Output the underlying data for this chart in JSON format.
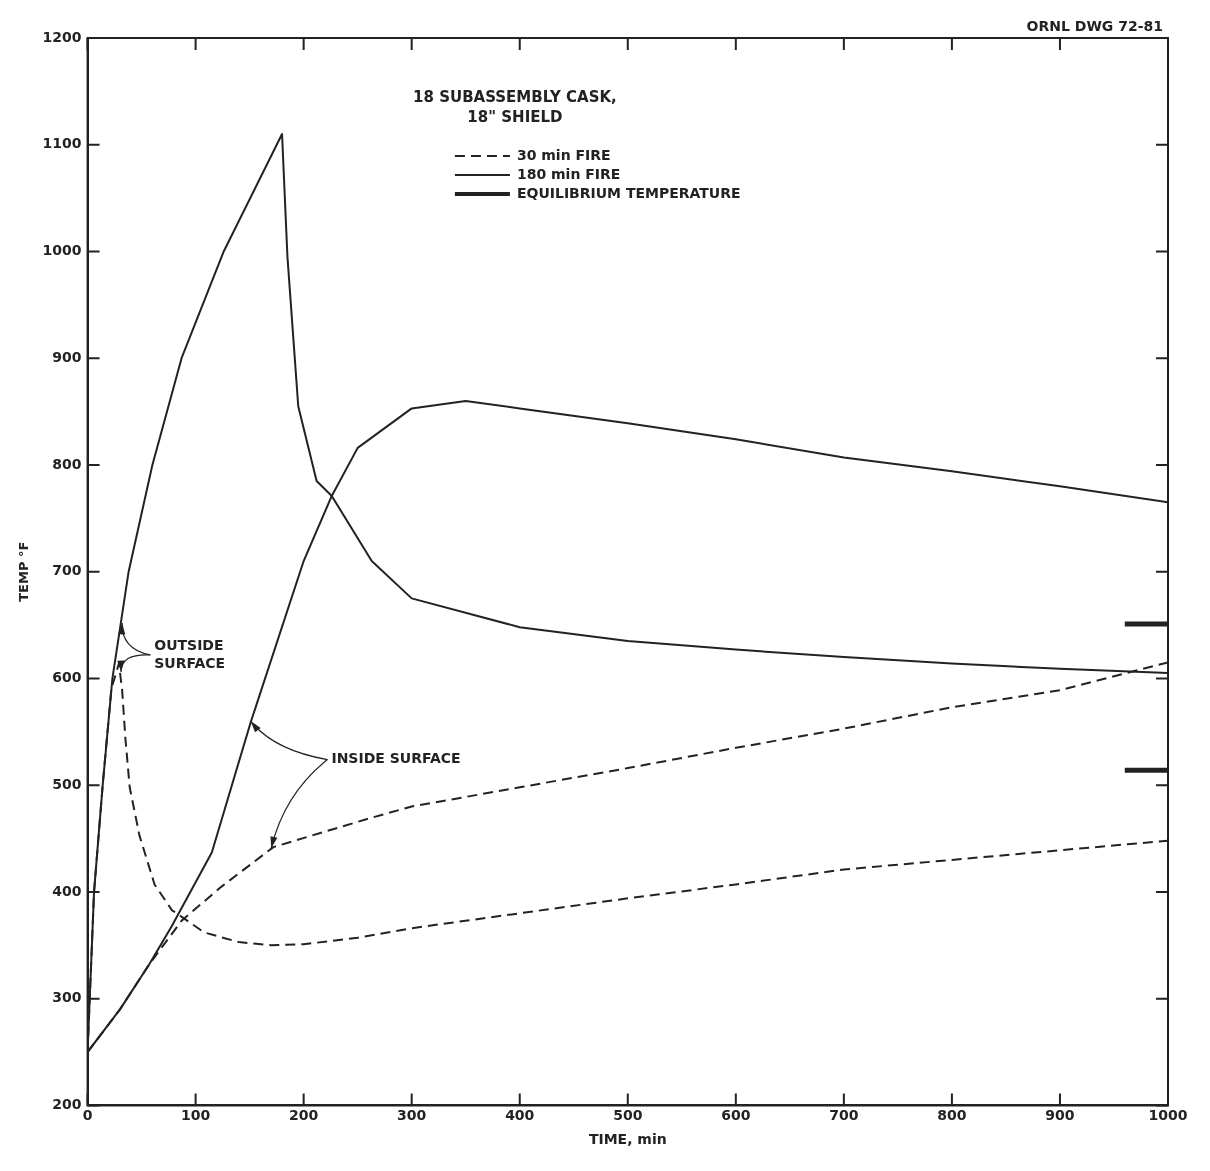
{
  "chart_data": {
    "type": "line",
    "title": "18 SUBASSEMBLY CASK, 18\" SHIELD",
    "xlabel": "TIME, min",
    "ylabel": "TEMP °F",
    "annotations": [
      {
        "text": "OUTSIDE SURFACE",
        "x": 32,
        "y": 652
      },
      {
        "text": "INSIDE SURFACE",
        "x": 151,
        "y": 560
      },
      "ORNL DWG 72-81"
    ],
    "xlim": [
      0,
      1000
    ],
    "xticks": [
      0,
      100,
      200,
      300,
      400,
      500,
      600,
      700,
      800,
      900,
      1000
    ],
    "ylim": [
      200,
      1200
    ],
    "yticks": [
      200,
      300,
      400,
      500,
      600,
      700,
      800,
      900,
      1000,
      1100,
      1200
    ],
    "grid": false,
    "legend": "top",
    "marker": "none",
    "series": [
      {
        "name": "30 min FIRE",
        "color": "#222222",
        "line_style": "dashed",
        "x": [
          0,
          2,
          6,
          14,
          22,
          29,
          32,
          35,
          39,
          48,
          62,
          78,
          108,
          140,
          170,
          200,
          250,
          300,
          400,
          500,
          600,
          700,
          800,
          900,
          1000
        ],
        "values": [
          250,
          300,
          400,
          500,
          590,
          614,
          589,
          544,
          498,
          453,
          407,
          383,
          362,
          353,
          350,
          351,
          357,
          366,
          380,
          394,
          407,
          421,
          430,
          439,
          448
        ]
      },
      {
        "color": "#222222",
        "line_style": "dashed",
        "x": [
          0,
          30,
          57,
          87,
          124,
          172,
          261,
          300,
          400,
          500,
          600,
          700,
          800,
          900,
          1000
        ],
        "values": [
          250,
          290,
          332,
          373,
          405,
          442,
          469,
          480,
          498,
          516,
          535,
          553,
          573,
          589,
          615
        ]
      },
      {
        "name": "180 min FIRE",
        "color": "#222222",
        "line_style": "solid",
        "x": [
          0,
          2,
          6,
          14,
          23,
          38,
          60,
          87,
          126,
          180,
          185,
          195,
          212,
          226,
          263,
          300,
          400,
          500,
          600,
          700,
          800,
          900,
          1000
        ],
        "values": [
          250,
          300,
          400,
          500,
          600,
          700,
          800,
          900,
          1000,
          1110,
          995,
          855,
          785,
          771,
          710,
          675,
          648,
          635,
          627,
          620,
          614,
          609,
          605
        ]
      },
      {
        "color": "#222222",
        "line_style": "solid",
        "x": [
          0,
          30,
          57,
          78,
          115,
          151,
          200,
          226,
          250,
          300,
          350,
          400,
          500,
          600,
          700,
          800,
          900,
          1000
        ],
        "values": [
          250,
          290,
          332,
          368,
          437,
          559,
          710,
          771,
          816,
          853,
          860,
          853,
          839,
          824,
          807,
          794,
          780,
          765
        ]
      },
      {
        "name": "EQUILIBRIUM TEMPERATURE",
        "color": "#222222",
        "line_style": "solid",
        "x": [
          960,
          1000
        ],
        "values": [
          651,
          651
        ]
      },
      {
        "color": "#222222",
        "line_style": "solid",
        "x": [
          960,
          1000
        ],
        "values": [
          514,
          514
        ]
      }
    ]
  }
}
